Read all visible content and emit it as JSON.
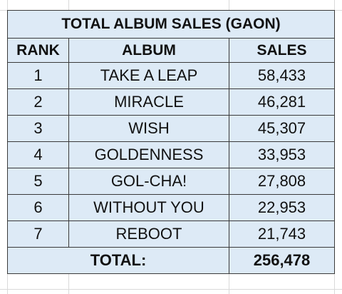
{
  "table": {
    "title": "TOTAL ALBUM SALES (GAON)",
    "headers": {
      "rank": "RANK",
      "album": "ALBUM",
      "sales": "SALES"
    },
    "rows": [
      {
        "rank": "1",
        "album": "TAKE A LEAP",
        "sales": "58,433"
      },
      {
        "rank": "2",
        "album": "MIRACLE",
        "sales": "46,281"
      },
      {
        "rank": "3",
        "album": "WISH",
        "sales": "45,307"
      },
      {
        "rank": "4",
        "album": "GOLDENNESS",
        "sales": "33,953"
      },
      {
        "rank": "5",
        "album": "GOL-CHA!",
        "sales": "27,808"
      },
      {
        "rank": "6",
        "album": "WITHOUT YOU",
        "sales": "22,953"
      },
      {
        "rank": "7",
        "album": "REBOOT",
        "sales": "21,743"
      }
    ],
    "total": {
      "label": "TOTAL:",
      "value": "256,478"
    }
  },
  "colors": {
    "cell_background": "#ddeaf6",
    "border": "#3a3a3a",
    "gridline": "#d9d9d9"
  }
}
